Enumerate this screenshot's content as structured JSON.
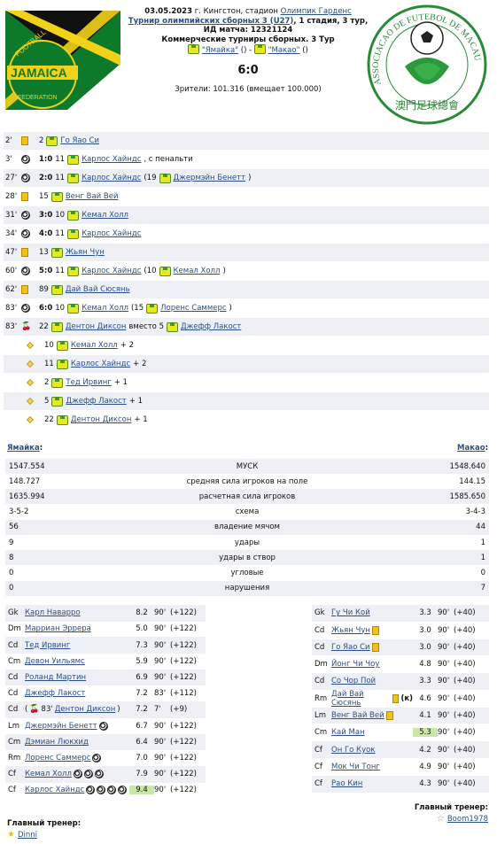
{
  "header": {
    "line1_date": "03.05.2023",
    "line1_rest": " г. Кингстон, стадион ",
    "stadium": "Олимпик Гарденс",
    "tournament": "Турнир олимпийских сборных 3 (U27)",
    "tournament_rest": ", 1 стадия, 3 тур,",
    "match_id": "ИД матча: 12321124",
    "commercial": "Коммерческие турниры сборных. 3 Тур",
    "home_team_q": "\"Ямайка\"",
    "home_paren": " () - ",
    "away_team_q": "\"Макао\"",
    "away_paren": " ()",
    "score": "6:0",
    "attendance": "Зрители: 101.316 (вмещает 100.000)",
    "logo_left_text": [
      "FOOTBALL",
      "JAMAICA",
      "FEDERATION"
    ],
    "logo_right_text": [
      "ASSOCIACAO DE FUTEBOL DE MACAU",
      "澳門足球總會"
    ]
  },
  "events": [
    {
      "min": "2'",
      "icon": "yellow-card",
      "pre": "2",
      "player": "Го Яао Си",
      "post": ""
    },
    {
      "min": "3'",
      "icon": "goal",
      "score": "1:0",
      "pre": "11",
      "player": "Карлос Хайндс",
      "post": ", с пенальти"
    },
    {
      "min": "27'",
      "icon": "goal",
      "score": "2:0",
      "pre": "11",
      "player": "Карлос Хайндс",
      "post": " (19",
      "player2": "Джермэйн Бенетт",
      "post2": ")"
    },
    {
      "min": "28'",
      "icon": "yellow-card",
      "pre": "15",
      "player": "Венг Вай Вей",
      "post": ""
    },
    {
      "min": "31'",
      "icon": "goal",
      "score": "3:0",
      "pre": "10",
      "player": "Кемал Холл",
      "post": ""
    },
    {
      "min": "34'",
      "icon": "goal",
      "score": "4:0",
      "pre": "11",
      "player": "Карлос Хайндс",
      "post": ""
    },
    {
      "min": "47'",
      "icon": "yellow-card",
      "pre": "13",
      "player": "Жьян Чун",
      "post": ""
    },
    {
      "min": "60'",
      "icon": "goal",
      "score": "5:0",
      "pre": "11",
      "player": "Карлос Хайндс",
      "post": " (10",
      "player2": "Кемал Холл",
      "post2": ")"
    },
    {
      "min": "62'",
      "icon": "yellow-card",
      "pre": "89",
      "player": "Дай Вай Сюсянь",
      "post": ""
    },
    {
      "min": "83'",
      "icon": "goal",
      "score": "6:0",
      "pre": "10",
      "player": "Кемал Холл",
      "post": " (15",
      "player2": "Лоренс Саммерс",
      "post2": ")"
    },
    {
      "min": "83'",
      "icon": "substitution",
      "pre": "22",
      "player": "Дентон Диксон",
      "post": " вместо 5",
      "player2": "Джефф Лакост",
      "post2": ""
    },
    {
      "min": "",
      "icon": "assist",
      "pre": "10",
      "player": "Кемал Холл",
      "post": " + 2"
    },
    {
      "min": "",
      "icon": "assist",
      "pre": "11",
      "player": "Карлос Хайндс",
      "post": " + 2"
    },
    {
      "min": "",
      "icon": "assist",
      "pre": "2",
      "player": "Тед Ирвинг",
      "post": " + 1"
    },
    {
      "min": "",
      "icon": "assist",
      "pre": "5",
      "player": "Джефф Лакост",
      "post": " + 1"
    },
    {
      "min": "",
      "icon": "assist",
      "pre": "22",
      "player": "Дентон Диксон",
      "post": " + 1"
    }
  ],
  "teams": {
    "home": "Ямайка",
    "home_colon": ":",
    "away": "Макао",
    "away_colon": ":"
  },
  "stats": [
    {
      "l": "1547.554",
      "c": "МУСК",
      "r": "1548.640"
    },
    {
      "l": "148.727",
      "c": "средняя сила игроков на поле",
      "r": "144.15"
    },
    {
      "l": "1635.994",
      "c": "расчетная сила игроков",
      "r": "1585.650"
    },
    {
      "l": "3-5-2",
      "c": "схема",
      "r": "3-4-3"
    },
    {
      "l": "56",
      "c": "владение мячом",
      "r": "44"
    },
    {
      "l": "9",
      "c": "удары",
      "r": "1"
    },
    {
      "l": "8",
      "c": "удары в створ",
      "r": "1"
    },
    {
      "l": "0",
      "c": "угловые",
      "r": "0"
    },
    {
      "l": "0",
      "c": "нарушения",
      "r": "7"
    }
  ],
  "home_players": [
    {
      "pos": "Gk",
      "name": "Карл Наварро",
      "marks": [],
      "rating": "8.2",
      "min": "90'",
      "diff": "(+122)"
    },
    {
      "pos": "Dm",
      "name": "Марриан Эррера",
      "marks": [],
      "rating": "5.0",
      "min": "90'",
      "diff": "(+122)"
    },
    {
      "pos": "Cd",
      "name": "Тед Ирвинг",
      "marks": [],
      "rating": "7.3",
      "min": "90'",
      "diff": "(+122)"
    },
    {
      "pos": "Cm",
      "name": "Девон Уильямс",
      "marks": [],
      "rating": "5.9",
      "min": "90'",
      "diff": "(+122)"
    },
    {
      "pos": "Cd",
      "name": "Роланд Мартин",
      "marks": [],
      "rating": "6.9",
      "min": "90'",
      "diff": "(+122)"
    },
    {
      "pos": "Cd",
      "name": "Джефф Лакост",
      "marks": [],
      "rating": "7.2",
      "min": "83'",
      "diff": "(+112)"
    },
    {
      "pos": "Cd",
      "name": "Дентон Диксон",
      "sub_prefix": "( ",
      "sub_min": " 83'",
      "sub_suffix": " )",
      "marks": [],
      "rating": "7.2",
      "min": "7'",
      "diff": "(+9)"
    },
    {
      "pos": "Lm",
      "name": "Джермэйн Бенетт",
      "marks": [
        "goal"
      ],
      "rating": "6.7",
      "min": "90'",
      "diff": "(+122)"
    },
    {
      "pos": "Cm",
      "name": "Дэмиан Люкхид",
      "marks": [],
      "rating": "6.4",
      "min": "90'",
      "diff": "(+122)"
    },
    {
      "pos": "Rm",
      "name": "Лоренс Саммерс",
      "marks": [
        "goal"
      ],
      "rating": "7.0",
      "min": "90'",
      "diff": "(+122)"
    },
    {
      "pos": "Cf",
      "name": "Кемал Холл",
      "marks": [
        "goal",
        "goal",
        "goal"
      ],
      "rating": "7.9",
      "min": "90'",
      "diff": "(+122)"
    },
    {
      "pos": "Cf",
      "name": "Карлос Хайндс",
      "marks": [
        "goal",
        "goal",
        "goal",
        "goal"
      ],
      "rating": "9.4",
      "min": "90'",
      "diff": "(+122)",
      "best": true
    }
  ],
  "away_players": [
    {
      "pos": "Gk",
      "name": "Гу Чи Кой",
      "marks": [],
      "rating": "3.3",
      "min": "90'",
      "diff": "(+40)"
    },
    {
      "pos": "Cd",
      "name": "Жьян Чун",
      "marks": [
        "yellow"
      ],
      "rating": "3.0",
      "min": "90'",
      "diff": "(+40)"
    },
    {
      "pos": "Cd",
      "name": "Го Яао Си",
      "marks": [
        "yellow"
      ],
      "rating": "3.0",
      "min": "90'",
      "diff": "(+40)"
    },
    {
      "pos": "Dm",
      "name": "Йонг Чи Чоу",
      "marks": [],
      "rating": "4.8",
      "min": "90'",
      "diff": "(+40)"
    },
    {
      "pos": "Cd",
      "name": "Со Чор Пой",
      "marks": [],
      "rating": "3.3",
      "min": "90'",
      "diff": "(+40)"
    },
    {
      "pos": "Rm",
      "name": "Дай Вай Сюсянь",
      "marks": [
        "yellow"
      ],
      "captain": "(к)",
      "rating": "4.6",
      "min": "90'",
      "diff": "(+40)"
    },
    {
      "pos": "Lm",
      "name": "Венг Вай Вей",
      "marks": [
        "yellow"
      ],
      "rating": "4.1",
      "min": "90'",
      "diff": "(+40)"
    },
    {
      "pos": "Cm",
      "name": "Кай Ман",
      "marks": [],
      "rating": "5.3",
      "min": "90'",
      "diff": "(+40)",
      "best": true
    },
    {
      "pos": "Cf",
      "name": "Он Го Куок",
      "marks": [],
      "rating": "4.2",
      "min": "90'",
      "diff": "(+40)"
    },
    {
      "pos": "Cf",
      "name": "Мок Чи Тонг",
      "marks": [],
      "rating": "4.9",
      "min": "90'",
      "diff": "(+40)"
    },
    {
      "pos": "Cf",
      "name": "Рао Кин",
      "marks": [],
      "rating": "4.3",
      "min": "90'",
      "diff": "(+40)"
    }
  ],
  "coaches": {
    "label": "Главный тренер:",
    "home": "Dinni",
    "away": "Boom1978"
  }
}
